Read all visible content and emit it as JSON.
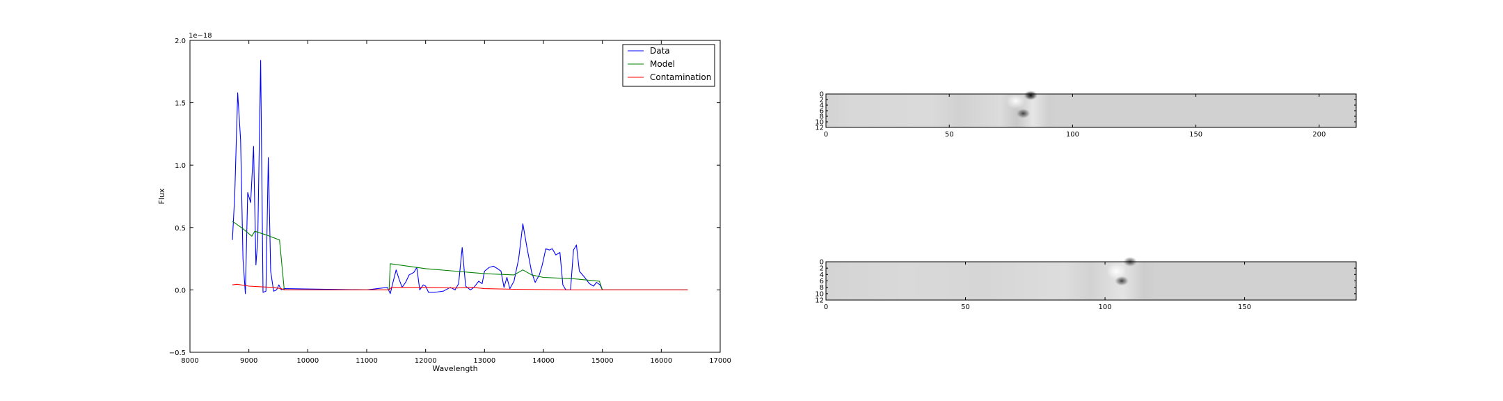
{
  "chart_data": [
    {
      "type": "line",
      "xlabel": "Wavelength",
      "ylabel": "Flux",
      "y_offset_label": "1e−18",
      "xlim": [
        8000,
        17000
      ],
      "ylim": [
        -0.5,
        2.0
      ],
      "xticks": [
        8000,
        9000,
        10000,
        11000,
        12000,
        13000,
        14000,
        15000,
        16000,
        17000
      ],
      "xtick_labels": [
        "8000",
        "9000",
        "10000",
        "11000",
        "12000",
        "13000",
        "14000",
        "15000",
        "16000",
        "17000"
      ],
      "yticks": [
        -0.5,
        0.0,
        0.5,
        1.0,
        1.5,
        2.0
      ],
      "ytick_labels": [
        "−0.5",
        "0.0",
        "0.5",
        "1.0",
        "1.5",
        "2.0"
      ],
      "legend": {
        "placement": "top-right",
        "entries": [
          "Data",
          "Model",
          "Contamination"
        ]
      },
      "series": [
        {
          "name": "Data",
          "color": "#0000ff",
          "points": [
            [
              8720,
              0.4
            ],
            [
              8760,
              0.75
            ],
            [
              8810,
              1.58
            ],
            [
              8860,
              1.2
            ],
            [
              8900,
              0.25
            ],
            [
              8940,
              -0.03
            ],
            [
              8980,
              0.78
            ],
            [
              9030,
              0.7
            ],
            [
              9080,
              1.15
            ],
            [
              9120,
              0.2
            ],
            [
              9150,
              0.4
            ],
            [
              9200,
              1.84
            ],
            [
              9240,
              -0.02
            ],
            [
              9290,
              -0.01
            ],
            [
              9330,
              1.06
            ],
            [
              9370,
              0.15
            ],
            [
              9420,
              -0.01
            ],
            [
              9470,
              0.0
            ],
            [
              9510,
              0.04
            ],
            [
              9550,
              0.0
            ],
            [
              9600,
              0.01
            ],
            [
              11000,
              0.0
            ],
            [
              11350,
              0.02
            ],
            [
              11400,
              -0.03
            ],
            [
              11440,
              0.05
            ],
            [
              11500,
              0.16
            ],
            [
              11540,
              0.1
            ],
            [
              11600,
              0.02
            ],
            [
              11660,
              0.06
            ],
            [
              11720,
              0.12
            ],
            [
              11800,
              0.14
            ],
            [
              11850,
              0.18
            ],
            [
              11900,
              0.0
            ],
            [
              11960,
              0.04
            ],
            [
              12000,
              0.03
            ],
            [
              12050,
              -0.02
            ],
            [
              12150,
              -0.02
            ],
            [
              12300,
              -0.01
            ],
            [
              12420,
              0.02
            ],
            [
              12500,
              0.0
            ],
            [
              12560,
              0.05
            ],
            [
              12620,
              0.34
            ],
            [
              12680,
              0.03
            ],
            [
              12760,
              0.0
            ],
            [
              12820,
              0.02
            ],
            [
              12900,
              0.07
            ],
            [
              12960,
              0.05
            ],
            [
              13000,
              0.15
            ],
            [
              13080,
              0.18
            ],
            [
              13150,
              0.19
            ],
            [
              13220,
              0.17
            ],
            [
              13280,
              0.15
            ],
            [
              13330,
              0.02
            ],
            [
              13380,
              0.1
            ],
            [
              13430,
              0.01
            ],
            [
              13500,
              0.07
            ],
            [
              13580,
              0.25
            ],
            [
              13650,
              0.53
            ],
            [
              13720,
              0.34
            ],
            [
              13800,
              0.14
            ],
            [
              13860,
              0.06
            ],
            [
              13930,
              0.12
            ],
            [
              13980,
              0.2
            ],
            [
              14040,
              0.33
            ],
            [
              14100,
              0.32
            ],
            [
              14150,
              0.33
            ],
            [
              14210,
              0.28
            ],
            [
              14280,
              0.3
            ],
            [
              14330,
              0.04
            ],
            [
              14380,
              0.0
            ],
            [
              14460,
              0.0
            ],
            [
              14510,
              0.32
            ],
            [
              14560,
              0.36
            ],
            [
              14610,
              0.15
            ],
            [
              14700,
              0.1
            ],
            [
              14780,
              0.05
            ],
            [
              14850,
              0.03
            ],
            [
              14900,
              0.06
            ],
            [
              14960,
              0.04
            ],
            [
              15000,
              0.0
            ],
            [
              16450,
              0.0
            ]
          ]
        },
        {
          "name": "Model",
          "color": "#008000",
          "points": [
            [
              8720,
              0.55
            ],
            [
              8900,
              0.49
            ],
            [
              9050,
              0.43
            ],
            [
              9100,
              0.47
            ],
            [
              9300,
              0.44
            ],
            [
              9520,
              0.4
            ],
            [
              9600,
              0.0
            ],
            [
              11000,
              0.0
            ],
            [
              11380,
              0.0
            ],
            [
              11400,
              0.21
            ],
            [
              12000,
              0.17
            ],
            [
              13000,
              0.13
            ],
            [
              13500,
              0.12
            ],
            [
              13650,
              0.16
            ],
            [
              13800,
              0.12
            ],
            [
              14000,
              0.1
            ],
            [
              14500,
              0.09
            ],
            [
              14950,
              0.07
            ],
            [
              15000,
              0.0
            ],
            [
              16450,
              0.0
            ]
          ]
        },
        {
          "name": "Contamination",
          "color": "#ff0000",
          "points": [
            [
              8720,
              0.04
            ],
            [
              8800,
              0.045
            ],
            [
              9000,
              0.03
            ],
            [
              9200,
              0.025
            ],
            [
              9400,
              0.02
            ],
            [
              9550,
              0.01
            ],
            [
              9600,
              0.0
            ],
            [
              11000,
              0.0
            ],
            [
              11380,
              0.0
            ],
            [
              11420,
              0.02
            ],
            [
              12000,
              0.02
            ],
            [
              12500,
              0.015
            ],
            [
              12800,
              0.02
            ],
            [
              13000,
              0.01
            ],
            [
              13500,
              0.005
            ],
            [
              14500,
              0.0
            ],
            [
              15500,
              0.0
            ],
            [
              16450,
              0.0
            ]
          ]
        }
      ]
    },
    {
      "type": "heatmap",
      "xlim": [
        0,
        215
      ],
      "ylim": [
        12,
        0
      ],
      "xticks": [
        0,
        50,
        100,
        150,
        200
      ],
      "xtick_labels": [
        "0",
        "50",
        "100",
        "150",
        "200"
      ],
      "yticks": [
        0,
        2,
        4,
        6,
        8,
        10,
        12
      ],
      "ytick_labels": [
        "0",
        "2",
        "4",
        "6",
        "8",
        "10",
        "12"
      ],
      "features": [
        {
          "x": 83,
          "y": 0.5,
          "value": -1.0
        },
        {
          "x": 80,
          "y": 7.0,
          "value": -0.55
        },
        {
          "x": 77,
          "y": 2.5,
          "value": 0.55
        }
      ]
    },
    {
      "type": "heatmap",
      "xlim": [
        0,
        190
      ],
      "ylim": [
        12,
        0
      ],
      "xticks": [
        0,
        50,
        100,
        150
      ],
      "xtick_labels": [
        "0",
        "50",
        "100",
        "150"
      ],
      "yticks": [
        0,
        2,
        4,
        6,
        8,
        10,
        12
      ],
      "ytick_labels": [
        "0",
        "2",
        "4",
        "6",
        "8",
        "10",
        "12"
      ],
      "features": [
        {
          "x": 109,
          "y": 0.0,
          "value": -0.75
        },
        {
          "x": 106,
          "y": 6.0,
          "value": -0.75
        },
        {
          "x": 104,
          "y": 3.0,
          "value": 0.5
        }
      ]
    }
  ]
}
